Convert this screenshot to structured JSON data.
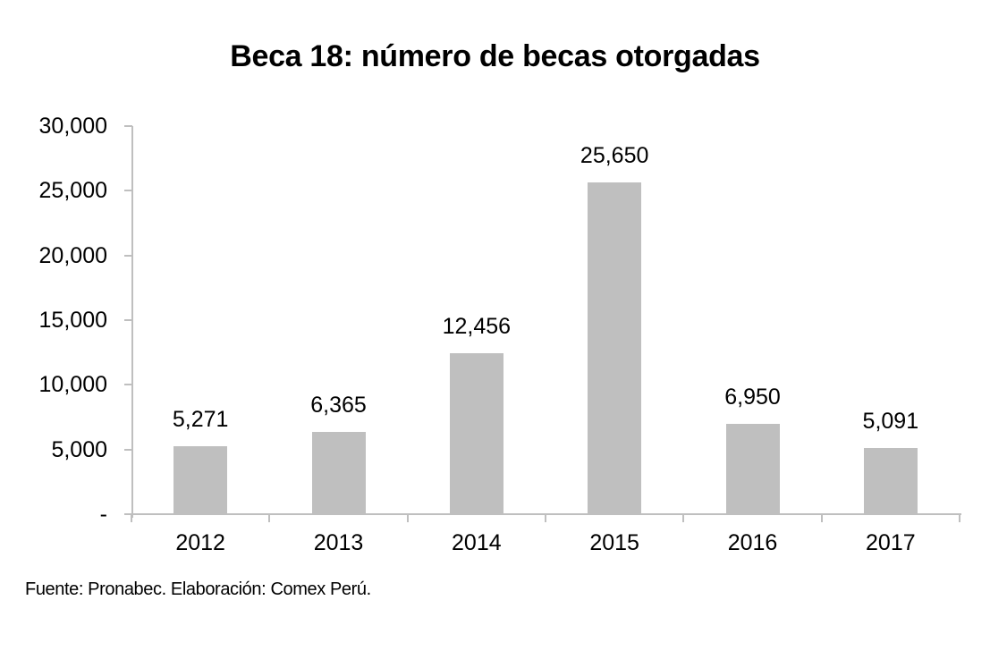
{
  "title": "Beca 18: número de becas otorgadas",
  "source": "Fuente: Pronabec. Elaboración: Comex Perú.",
  "colors": {
    "bar": "#bfbfbf",
    "axis": "#bfbfbf",
    "text": "#000000"
  },
  "y_ticks": [
    "30,000",
    "25,000",
    "20,000",
    "15,000",
    "10,000",
    "5,000",
    "-"
  ],
  "bars": [
    {
      "year": "2012",
      "label": "5,271"
    },
    {
      "year": "2013",
      "label": "6,365"
    },
    {
      "year": "2014",
      "label": "12,456"
    },
    {
      "year": "2015",
      "label": "25,650"
    },
    {
      "year": "2016",
      "label": "6,950"
    },
    {
      "year": "2017",
      "label": "5,091"
    }
  ],
  "chart_data": {
    "type": "bar",
    "title": "Beca 18: número de becas otorgadas",
    "categories": [
      "2012",
      "2013",
      "2014",
      "2015",
      "2016",
      "2017"
    ],
    "values": [
      5271,
      6365,
      12456,
      25650,
      6950,
      5091
    ],
    "data_labels": [
      "5,271",
      "6,365",
      "12,456",
      "25,650",
      "6,950",
      "5,091"
    ],
    "xlabel": "",
    "ylabel": "",
    "ylim": [
      0,
      30000
    ],
    "y_ticks": [
      0,
      5000,
      10000,
      15000,
      20000,
      25000,
      30000
    ],
    "y_tick_labels": [
      "-",
      "5,000",
      "10,000",
      "15,000",
      "20,000",
      "25,000",
      "30,000"
    ],
    "grid": false,
    "legend": null,
    "annotations": [
      "Fuente: Pronabec. Elaboración: Comex Perú."
    ]
  }
}
